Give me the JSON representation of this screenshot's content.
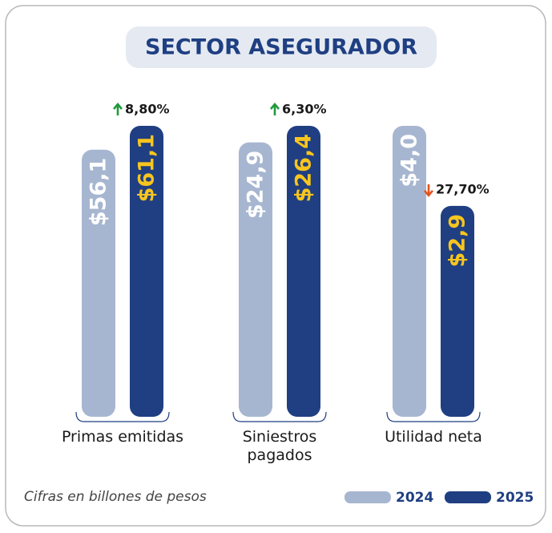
{
  "chart_data": {
    "type": "bar",
    "title": "SECTOR ASEGURADOR",
    "categories": [
      "Primas emitidas",
      "Siniestros pagados",
      "Utilidad neta"
    ],
    "series": [
      {
        "name": "2024",
        "color": "#a7b6d0",
        "label_color": "#ffffff",
        "values": [
          56.1,
          24.9,
          4.0
        ],
        "value_labels": [
          "$56,1",
          "$24,9",
          "$4,0"
        ]
      },
      {
        "name": "2025",
        "color": "#1f3f82",
        "label_color": "#f7c51e",
        "values": [
          61.1,
          26.4,
          2.9
        ],
        "value_labels": [
          "$61,1",
          "$26,4",
          "$2,9"
        ]
      }
    ],
    "changes": [
      8.8,
      6.3,
      -27.7
    ],
    "change_labels": [
      "8,80%",
      "6,30%",
      "27,70%"
    ],
    "up_color": "#1f9a3c",
    "down_color": "#e2531f",
    "note": "Cifras en billones de pesos"
  }
}
